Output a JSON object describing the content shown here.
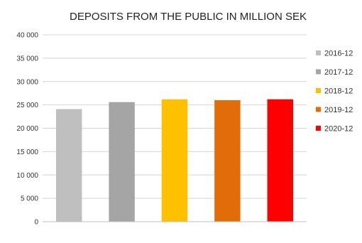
{
  "chart_data": {
    "type": "bar",
    "title": "DEPOSITS FROM THE PUBLIC IN MILLION SEK",
    "xlabel": "",
    "ylabel": "",
    "ylim": [
      0,
      40000
    ],
    "yticks": [
      0,
      5000,
      10000,
      15000,
      20000,
      25000,
      30000,
      35000,
      40000
    ],
    "ytick_labels": [
      "0",
      "5 000",
      "10 000",
      "15 000",
      "20 000",
      "25 000",
      "30 000",
      "35 000",
      "40 000"
    ],
    "grid": true,
    "legend_position": "right",
    "series": [
      {
        "name": "2016-12",
        "value": 24100,
        "color": "#bfbfbf"
      },
      {
        "name": "2017-12",
        "value": 25600,
        "color": "#a5a5a5"
      },
      {
        "name": "2018-12",
        "value": 26200,
        "color": "#ffc000"
      },
      {
        "name": "2019-12",
        "value": 26000,
        "color": "#e36c0a"
      },
      {
        "name": "2020-12",
        "value": 26200,
        "color": "#ff0000"
      }
    ]
  }
}
